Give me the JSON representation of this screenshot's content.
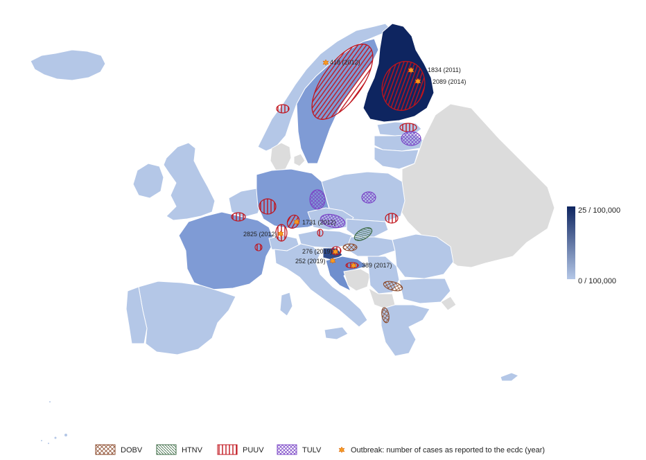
{
  "colors": {
    "low": "#b4c7e7",
    "mid": "#6f8fce",
    "high": "#0e2560",
    "no_data": "#dcdcdc",
    "sea": "#ffffff",
    "dobv": "#8b4a2b",
    "htnv": "#3d6b45",
    "puuv": "#c0141c",
    "tulv": "#7b47c7",
    "outbreak": "#f59a23"
  },
  "scale": {
    "max_label": "25 / 100,000",
    "min_label": "0 / 100,000",
    "max_value": 25,
    "min_value": 0
  },
  "legend": {
    "dobv": "DOBV",
    "htnv": "HTNV",
    "puuv": "PUUV",
    "tulv": "TULV",
    "outbreak": "Outbreak: number of cases as reported to the ecdc (year)"
  },
  "outbreaks": [
    {
      "label": "418 (2012)"
    },
    {
      "label": "1834 (2011)"
    },
    {
      "label": "2089 (2014)"
    },
    {
      "label": "1731 (2012)"
    },
    {
      "label": "2825 (2012)"
    },
    {
      "label": "276 (2019)"
    },
    {
      "label": "252 (2019)"
    },
    {
      "label": "389 (2017)"
    }
  ]
}
